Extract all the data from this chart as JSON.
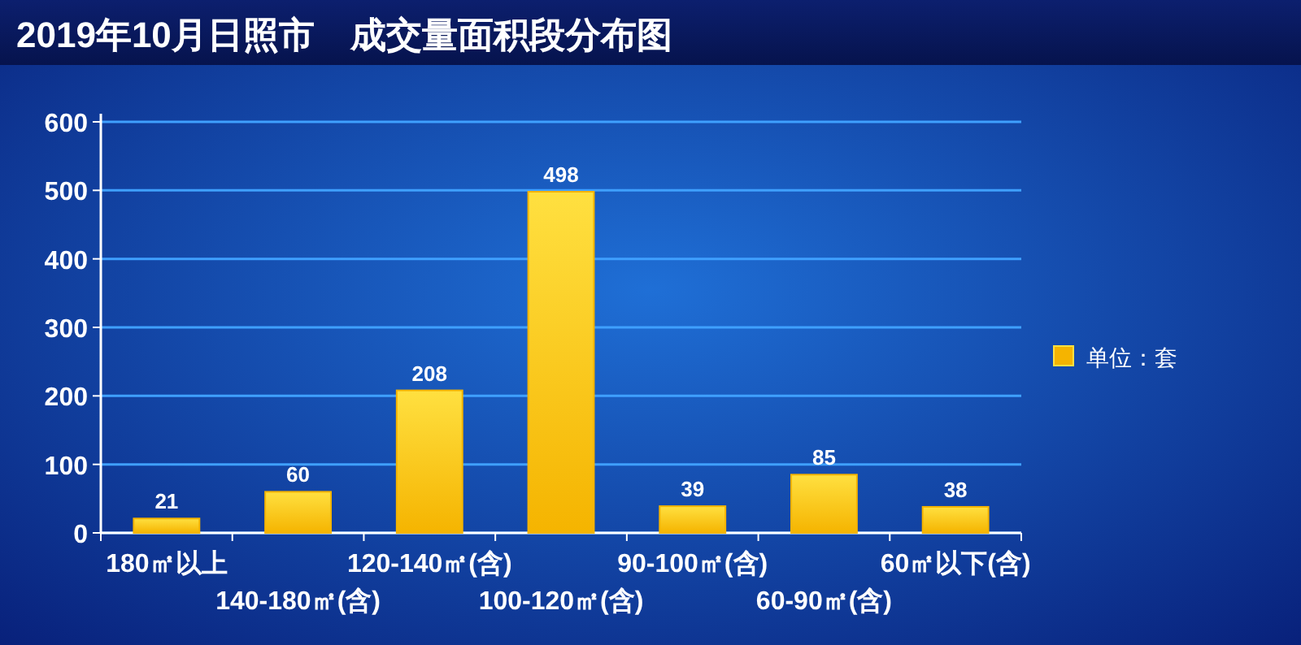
{
  "chart_data": {
    "type": "bar",
    "title": "2019年10月日照市　成交量面积段分布图",
    "categories": [
      "180㎡以上",
      "140-180㎡(含)",
      "120-140㎡(含)",
      "100-120㎡(含)",
      "90-100㎡(含)",
      "60-90㎡(含)",
      "60㎡以下(含)"
    ],
    "series": [
      {
        "name": "单位：套",
        "color": "#f5b400",
        "values": [
          21,
          60,
          208,
          498,
          39,
          85,
          38
        ]
      }
    ],
    "ylim": [
      0,
      600
    ],
    "yticks": [
      0,
      100,
      200,
      300,
      400,
      500,
      600
    ],
    "grid": "y",
    "legend": "right",
    "data_labels": true
  }
}
